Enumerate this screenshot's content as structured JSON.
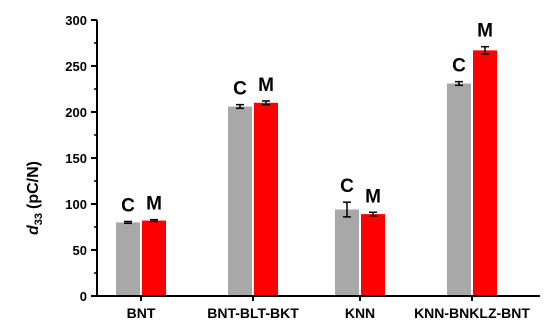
{
  "chart_data": {
    "type": "bar",
    "ylabel": "(pC/N)",
    "ylabel_symbol": "d",
    "ylabel_subscript": "33",
    "ylim": [
      0,
      300
    ],
    "yticks": [
      0,
      50,
      100,
      150,
      200,
      250,
      300
    ],
    "categories": [
      "BNT",
      "BNT-BLT-BKT",
      "KNN",
      "KNN-BNKLZ-BNT"
    ],
    "grid": false,
    "series": [
      {
        "tag": "C",
        "color": "#a8a8a8",
        "values": [
          80,
          206,
          94,
          231
        ],
        "errors": [
          1,
          2,
          8,
          2
        ]
      },
      {
        "tag": "M",
        "color": "#ff0000",
        "values": [
          82,
          210,
          89,
          267
        ],
        "errors": [
          1,
          2,
          2,
          4
        ]
      }
    ]
  }
}
